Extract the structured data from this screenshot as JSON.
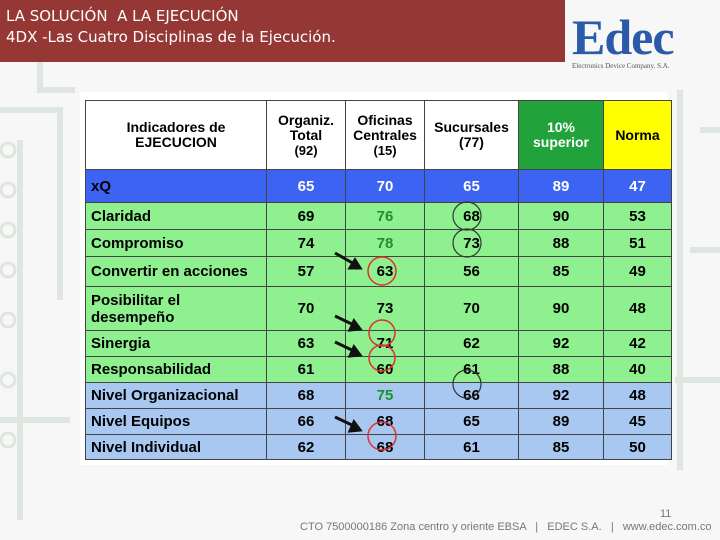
{
  "header": {
    "title": "LA SOLUCIÓN  A LA EJECUCIÓN",
    "subtitle": "4DX -Las Cuatro Disciplinas de la Ejecución."
  },
  "logo": {
    "name": "Edec",
    "tagline": "Electronics Device Company. S.A."
  },
  "table": {
    "columns": [
      [
        "Indicadores de",
        "EJECUCION"
      ],
      [
        "Organiz.",
        "Total",
        "(92)"
      ],
      [
        "Oficinas",
        "Centrales",
        "(15)"
      ],
      [
        "Sucursales",
        "(77)"
      ],
      [
        "10%",
        "superior"
      ],
      [
        "Norma"
      ]
    ],
    "rows": [
      [
        "xQ",
        65,
        70,
        65,
        89,
        47
      ],
      [
        "Claridad",
        69,
        76,
        68,
        90,
        53
      ],
      [
        "Compromiso",
        74,
        78,
        73,
        88,
        51
      ],
      [
        "Convertir en acciones",
        57,
        63,
        56,
        85,
        49
      ],
      [
        "Posibilitar el desempeño",
        70,
        73,
        70,
        90,
        48
      ],
      [
        "Sinergia",
        63,
        71,
        62,
        92,
        42
      ],
      [
        "Responsabilidad",
        61,
        60,
        61,
        88,
        40
      ],
      [
        "Nivel Organizacional",
        68,
        75,
        66,
        92,
        48
      ],
      [
        "Nivel Equipos",
        66,
        68,
        65,
        89,
        45
      ],
      [
        "Nivel Individual",
        62,
        68,
        61,
        85,
        50
      ]
    ]
  },
  "footer": {
    "page": 11,
    "text": "CTO 7500000186 Zona centro y oriente EBSA   |   EDEC S.A.   |   www.edec.com.co"
  }
}
